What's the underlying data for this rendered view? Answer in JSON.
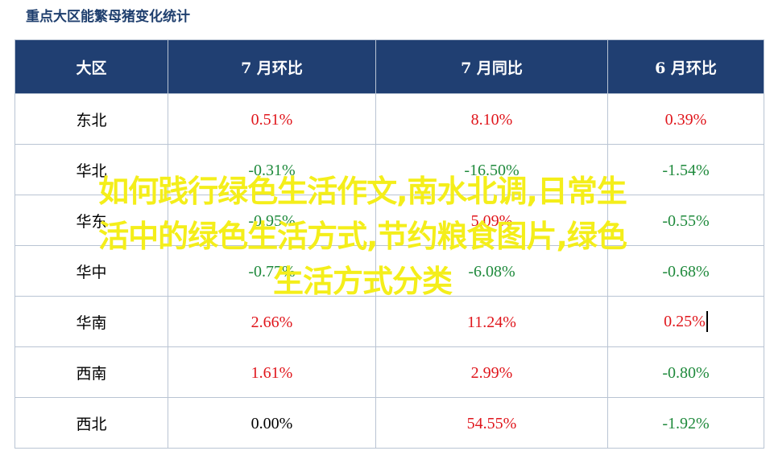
{
  "title": "重点大区能繁母猪变化统计",
  "table": {
    "headers": [
      "大区",
      "7 月环比",
      "7 月同比",
      "6 月环比"
    ],
    "rows": [
      {
        "region": "东北",
        "mom": "0.51%",
        "yoy": "8.10%",
        "prev_mom": "0.39%"
      },
      {
        "region": "华北",
        "mom": "-0.31%",
        "yoy": "-16.50%",
        "prev_mom": "-1.54%"
      },
      {
        "region": "华东",
        "mom": "-0.95%",
        "yoy": "5.09%",
        "prev_mom": "-0.55%"
      },
      {
        "region": "华中",
        "mom": "-0.77%",
        "yoy": "-6.08%",
        "prev_mom": "-0.68%"
      },
      {
        "region": "华南",
        "mom": "2.66%",
        "yoy": "11.24%",
        "prev_mom": "0.25%"
      },
      {
        "region": "西南",
        "mom": "1.61%",
        "yoy": "2.99%",
        "prev_mom": "-0.80%"
      },
      {
        "region": "西北",
        "mom": "0.00%",
        "yoy": "54.55%",
        "prev_mom": "-1.92%"
      }
    ]
  },
  "overlay": {
    "line1": "如何践行绿色生活作文,南水北调,日常生",
    "line2": "活中的绿色生活方式,节约粮食图片,绿色",
    "line3": "生活方式分类"
  },
  "colors": {
    "header_bg": "#203f72",
    "positive": "#e0161c",
    "negative": "#1f8a3c",
    "overlay": "#f4ee1a"
  }
}
